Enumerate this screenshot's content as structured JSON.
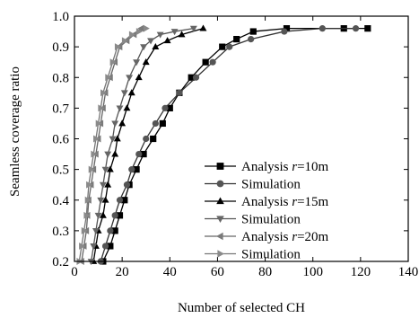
{
  "chart_data": {
    "type": "line",
    "xlabel": "Number of selected CH",
    "ylabel": "Seamless coverage ratio",
    "xlim": [
      0,
      140
    ],
    "ylim": [
      0.2,
      1.0
    ],
    "xticks": [
      0,
      20,
      40,
      60,
      80,
      100,
      120,
      140
    ],
    "yticks": [
      0.2,
      0.3,
      0.4,
      0.5,
      0.6,
      0.7,
      0.8,
      0.9,
      1.0
    ],
    "xtick_labels": [
      "0",
      "20",
      "40",
      "60",
      "80",
      "100",
      "120",
      "140"
    ],
    "ytick_labels": [
      "0.2",
      "0.3",
      "0.4",
      "0.5",
      "0.6",
      "0.7",
      "0.8",
      "0.9",
      "1.0"
    ],
    "grid": false,
    "legend_position": "right",
    "series": [
      {
        "name": "Analysis r=10m",
        "legend_prefix": "Analysis ",
        "legend_var": "r",
        "legend_suffix": "=10m",
        "marker": "square",
        "x": [
          12,
          15,
          17,
          19,
          21,
          23,
          26,
          29,
          33,
          37,
          40,
          44,
          49,
          55,
          62,
          68,
          75,
          89,
          113,
          123
        ],
        "y": [
          0.2,
          0.25,
          0.3,
          0.35,
          0.4,
          0.45,
          0.5,
          0.55,
          0.6,
          0.65,
          0.7,
          0.75,
          0.8,
          0.85,
          0.9,
          0.925,
          0.95,
          0.96,
          0.96,
          0.96
        ]
      },
      {
        "name": "Simulation",
        "marker": "circle",
        "x": [
          11,
          13,
          15,
          17,
          19,
          22,
          24,
          27,
          30,
          34,
          38,
          44,
          51,
          58,
          65,
          74,
          88,
          104,
          118
        ],
        "y": [
          0.2,
          0.25,
          0.3,
          0.35,
          0.4,
          0.45,
          0.5,
          0.55,
          0.6,
          0.65,
          0.7,
          0.75,
          0.8,
          0.85,
          0.9,
          0.925,
          0.95,
          0.96,
          0.96
        ]
      },
      {
        "name": "Analysis r=15m",
        "legend_prefix": "Analysis ",
        "legend_var": "r",
        "legend_suffix": "=15m",
        "marker": "triangle-up",
        "x": [
          8,
          9,
          10,
          12,
          13,
          14,
          15,
          17,
          18,
          20,
          22,
          24,
          27,
          30,
          34,
          39,
          45,
          54
        ],
        "y": [
          0.2,
          0.25,
          0.3,
          0.35,
          0.4,
          0.45,
          0.5,
          0.55,
          0.6,
          0.65,
          0.7,
          0.75,
          0.8,
          0.85,
          0.9,
          0.92,
          0.94,
          0.96
        ]
      },
      {
        "name": "Simulation",
        "marker": "triangle-down",
        "x": [
          7,
          8,
          9,
          10,
          11,
          12,
          13,
          14,
          16,
          17,
          19,
          21,
          23,
          26,
          29,
          32,
          36,
          42,
          50
        ],
        "y": [
          0.2,
          0.25,
          0.3,
          0.35,
          0.4,
          0.45,
          0.5,
          0.55,
          0.6,
          0.65,
          0.7,
          0.75,
          0.8,
          0.85,
          0.9,
          0.92,
          0.94,
          0.95,
          0.96
        ]
      },
      {
        "name": "Analysis r=20m",
        "legend_prefix": "Analysis ",
        "legend_var": "r",
        "legend_suffix": "=20m",
        "marker": "triangle-left",
        "x": [
          3,
          4,
          5,
          5.5,
          6,
          7,
          8,
          9,
          10,
          11,
          12,
          13,
          15,
          17,
          19,
          22,
          25,
          28
        ],
        "y": [
          0.2,
          0.25,
          0.3,
          0.35,
          0.4,
          0.45,
          0.5,
          0.55,
          0.6,
          0.65,
          0.7,
          0.75,
          0.8,
          0.85,
          0.9,
          0.92,
          0.94,
          0.96
        ]
      },
      {
        "name": "Simulation",
        "marker": "triangle-right",
        "x": [
          2,
          3,
          4,
          5,
          5.5,
          6,
          7,
          8,
          9,
          10,
          11,
          12,
          14,
          16,
          18,
          21,
          24,
          27,
          30
        ],
        "y": [
          0.2,
          0.25,
          0.3,
          0.35,
          0.4,
          0.45,
          0.5,
          0.55,
          0.6,
          0.65,
          0.7,
          0.75,
          0.8,
          0.85,
          0.9,
          0.92,
          0.94,
          0.95,
          0.96
        ]
      }
    ],
    "colors": {
      "axis": "#000000",
      "lines": [
        "#000000",
        "#333333",
        "#000000",
        "#555555",
        "#666666",
        "#777777"
      ],
      "markers": [
        "#000000",
        "#555555",
        "#000000",
        "#666666",
        "#7a7a7a",
        "#8a8a8a"
      ]
    }
  }
}
